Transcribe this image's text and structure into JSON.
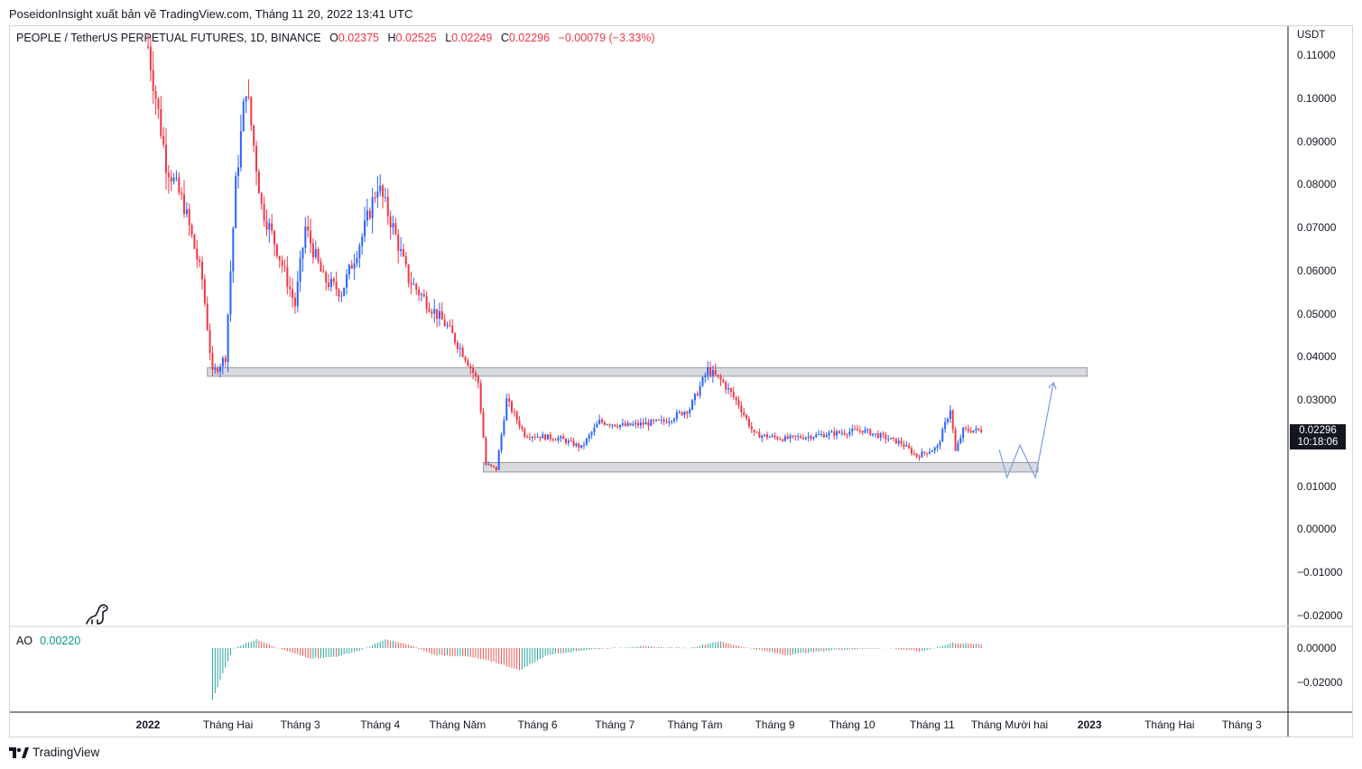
{
  "header": {
    "publish_line": "PoseidonInsight xuất bản về TradingView.com, Tháng 11 20, 2022 13:41 UTC"
  },
  "legend": {
    "symbol": "PEOPLE / TetherUS PERPETUAL FUTURES, 1D, BINANCE",
    "open_label": "O",
    "open": "0.02375",
    "high_label": "H",
    "high": "0.02525",
    "low_label": "L",
    "low": "0.02249",
    "close_label": "C",
    "close": "0.02296",
    "change": "−0.00079 (−3.33%)",
    "up_color": "#2962ff",
    "down_color": "#f23645"
  },
  "price_axis": {
    "unit": "USDT",
    "ticks": [
      "0.11000",
      "0.10000",
      "0.09000",
      "0.08000",
      "0.07000",
      "0.06000",
      "0.05000",
      "0.04000",
      "0.03000",
      "0.02000",
      "0.01000",
      "0.00000",
      "−0.01000",
      "−0.02000"
    ],
    "last_price": "0.02296",
    "countdown": "10:18:06"
  },
  "ao_panel": {
    "label": "AO",
    "value": "0.00220",
    "ticks": [
      "0.00000",
      "−0.02000"
    ],
    "pos_color": "#26a69a",
    "neg_color": "#ef5350"
  },
  "time_axis": {
    "labels": [
      {
        "text": "2022",
        "bold": true
      },
      {
        "text": "Tháng Hai",
        "bold": false
      },
      {
        "text": "Tháng 3",
        "bold": false
      },
      {
        "text": "Tháng 4",
        "bold": false
      },
      {
        "text": "Tháng Năm",
        "bold": false
      },
      {
        "text": "Tháng 6",
        "bold": false
      },
      {
        "text": "Tháng 7",
        "bold": false
      },
      {
        "text": "Tháng Tám",
        "bold": false
      },
      {
        "text": "Tháng 9",
        "bold": false
      },
      {
        "text": "Tháng 10",
        "bold": false
      },
      {
        "text": "Tháng 11",
        "bold": false
      },
      {
        "text": "Tháng Mười hai",
        "bold": false
      },
      {
        "text": "2023",
        "bold": true
      },
      {
        "text": "Tháng Hai",
        "bold": false
      },
      {
        "text": "Tháng 3",
        "bold": false
      }
    ]
  },
  "brand": {
    "name": "TradingView"
  },
  "chart_data": {
    "type": "candlestick",
    "title": "PEOPLE / TetherUS PERPETUAL FUTURES, 1D, BINANCE",
    "ylim": [
      -0.022,
      0.113
    ],
    "price_path": [
      {
        "date": "2022-01-01",
        "price": 0.112
      },
      {
        "date": "2022-01-08",
        "price": 0.085
      },
      {
        "date": "2022-01-15",
        "price": 0.075
      },
      {
        "date": "2022-01-22",
        "price": 0.058
      },
      {
        "date": "2022-01-26",
        "price": 0.036
      },
      {
        "date": "2022-01-31",
        "price": 0.04
      },
      {
        "date": "2022-02-04",
        "price": 0.08
      },
      {
        "date": "2022-02-08",
        "price": 0.103
      },
      {
        "date": "2022-02-14",
        "price": 0.075
      },
      {
        "date": "2022-02-20",
        "price": 0.065
      },
      {
        "date": "2022-02-27",
        "price": 0.052
      },
      {
        "date": "2022-03-03",
        "price": 0.07
      },
      {
        "date": "2022-03-10",
        "price": 0.058
      },
      {
        "date": "2022-03-17",
        "price": 0.055
      },
      {
        "date": "2022-03-25",
        "price": 0.068
      },
      {
        "date": "2022-03-31",
        "price": 0.08
      },
      {
        "date": "2022-04-06",
        "price": 0.07
      },
      {
        "date": "2022-04-12",
        "price": 0.058
      },
      {
        "date": "2022-04-20",
        "price": 0.052
      },
      {
        "date": "2022-04-27",
        "price": 0.047
      },
      {
        "date": "2022-05-04",
        "price": 0.04
      },
      {
        "date": "2022-05-09",
        "price": 0.034
      },
      {
        "date": "2022-05-12",
        "price": 0.015
      },
      {
        "date": "2022-05-16",
        "price": 0.014
      },
      {
        "date": "2022-05-20",
        "price": 0.03
      },
      {
        "date": "2022-05-27",
        "price": 0.022
      },
      {
        "date": "2022-06-10",
        "price": 0.021
      },
      {
        "date": "2022-06-18",
        "price": 0.019
      },
      {
        "date": "2022-06-25",
        "price": 0.025
      },
      {
        "date": "2022-07-05",
        "price": 0.024
      },
      {
        "date": "2022-07-20",
        "price": 0.025
      },
      {
        "date": "2022-07-30",
        "price": 0.028
      },
      {
        "date": "2022-08-06",
        "price": 0.037
      },
      {
        "date": "2022-08-12",
        "price": 0.034
      },
      {
        "date": "2022-08-18",
        "price": 0.029
      },
      {
        "date": "2022-08-24",
        "price": 0.022
      },
      {
        "date": "2022-09-05",
        "price": 0.021
      },
      {
        "date": "2022-09-20",
        "price": 0.022
      },
      {
        "date": "2022-10-05",
        "price": 0.023
      },
      {
        "date": "2022-10-20",
        "price": 0.02
      },
      {
        "date": "2022-10-26",
        "price": 0.017
      },
      {
        "date": "2022-11-03",
        "price": 0.019
      },
      {
        "date": "2022-11-08",
        "price": 0.028
      },
      {
        "date": "2022-11-10",
        "price": 0.018
      },
      {
        "date": "2022-11-13",
        "price": 0.023
      },
      {
        "date": "2022-11-20",
        "price": 0.02296
      }
    ],
    "zones": [
      {
        "name": "resistance",
        "from_date": "2022-01-24",
        "to_date": "2022-12-31",
        "low": 0.0355,
        "high": 0.0375
      },
      {
        "name": "support",
        "from_date": "2022-05-11",
        "to_date": "2022-12-12",
        "low": 0.0133,
        "high": 0.0155
      }
    ],
    "projection": [
      {
        "date": "2022-11-27",
        "price": 0.0185
      },
      {
        "date": "2022-11-30",
        "price": 0.012
      },
      {
        "date": "2022-12-05",
        "price": 0.0195
      },
      {
        "date": "2022-12-11",
        "price": 0.012
      },
      {
        "date": "2022-12-18",
        "price": 0.034
      }
    ],
    "ao_series": {
      "name": "AO",
      "ylim": [
        -0.032,
        0.01
      ],
      "points": [
        {
          "date": "2022-01-26",
          "value": -0.03
        },
        {
          "date": "2022-02-03",
          "value": 0.0
        },
        {
          "date": "2022-02-12",
          "value": 0.005
        },
        {
          "date": "2022-02-20",
          "value": 0.0
        },
        {
          "date": "2022-03-05",
          "value": -0.006
        },
        {
          "date": "2022-03-15",
          "value": -0.005
        },
        {
          "date": "2022-03-25",
          "value": -0.001
        },
        {
          "date": "2022-04-03",
          "value": 0.005
        },
        {
          "date": "2022-04-12",
          "value": 0.002
        },
        {
          "date": "2022-04-22",
          "value": -0.004
        },
        {
          "date": "2022-05-05",
          "value": -0.005
        },
        {
          "date": "2022-05-15",
          "value": -0.008
        },
        {
          "date": "2022-05-25",
          "value": -0.013
        },
        {
          "date": "2022-06-05",
          "value": -0.004
        },
        {
          "date": "2022-06-20",
          "value": -0.001
        },
        {
          "date": "2022-07-10",
          "value": 0.001
        },
        {
          "date": "2022-07-30",
          "value": 0.0
        },
        {
          "date": "2022-08-10",
          "value": 0.004
        },
        {
          "date": "2022-08-22",
          "value": 0.0
        },
        {
          "date": "2022-09-05",
          "value": -0.004
        },
        {
          "date": "2022-09-25",
          "value": -0.001
        },
        {
          "date": "2022-10-15",
          "value": 0.0
        },
        {
          "date": "2022-10-28",
          "value": -0.002
        },
        {
          "date": "2022-11-09",
          "value": 0.003
        },
        {
          "date": "2022-11-20",
          "value": 0.0022
        }
      ]
    }
  }
}
